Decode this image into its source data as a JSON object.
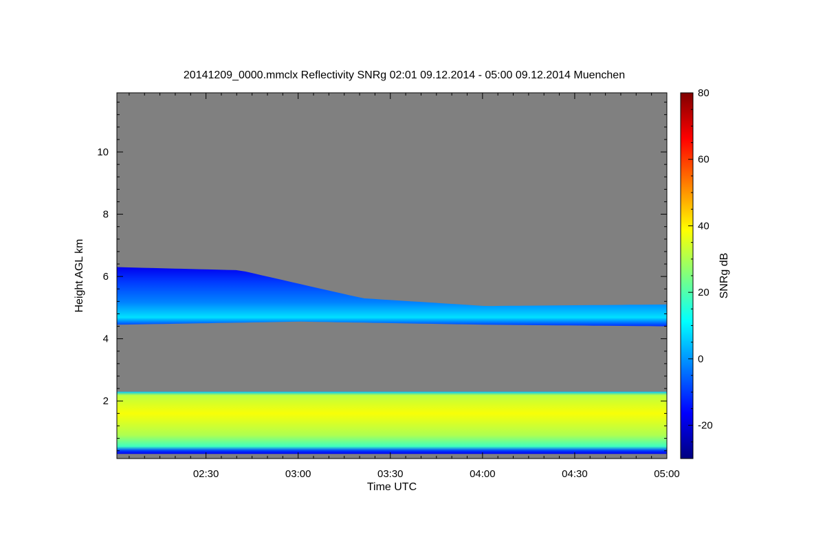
{
  "chart_data": {
    "type": "heatmap",
    "title": "20141209_0000.mmclx Reflectivity SNRg   02:01 09.12.2014 - 05:00 09.12.2014 Muenchen",
    "xlabel": "Time UTC",
    "ylabel": "Height AGL km",
    "colorbar_label": "SNRg dB",
    "x_range": [
      "02:01",
      "05:00"
    ],
    "x_ticks": [
      "02:30",
      "03:00",
      "03:30",
      "04:00",
      "04:30",
      "05:00"
    ],
    "x_tick_minutes": [
      29,
      59,
      89,
      119,
      149,
      179
    ],
    "ylim": [
      0.15,
      11.9
    ],
    "y_ticks": [
      2,
      4,
      6,
      8,
      10
    ],
    "colorbar_range": [
      -30,
      80
    ],
    "colorbar_ticks": [
      -20,
      0,
      20,
      40,
      60,
      80
    ],
    "colormap": [
      "#00007f",
      "#0000ff",
      "#007fff",
      "#00ffff",
      "#7fff7f",
      "#ffff00",
      "#ff7f00",
      "#ff0000",
      "#7f0000"
    ],
    "background_color": "#808080",
    "layers": [
      {
        "type": "upper cloud layer",
        "base_km": [
          [
            0,
            4.45
          ],
          [
            60,
            4.55
          ],
          [
            120,
            4.45
          ],
          [
            179,
            4.4
          ]
        ],
        "top_km": [
          [
            0,
            6.3
          ],
          [
            40,
            6.2
          ],
          [
            80,
            5.3
          ],
          [
            120,
            5.05
          ],
          [
            179,
            5.1
          ]
        ],
        "snr_db": [
          -15,
          10
        ]
      },
      {
        "type": "lower cloud layer",
        "base_km": [
          [
            0,
            0.3
          ],
          [
            179,
            0.3
          ]
        ],
        "top_km": [
          [
            0,
            2.3
          ],
          [
            179,
            2.3
          ]
        ],
        "snr_db": [
          10,
          45
        ]
      }
    ]
  }
}
